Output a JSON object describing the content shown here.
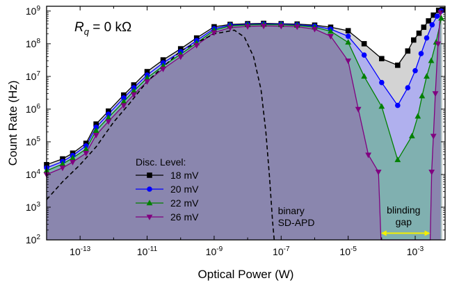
{
  "chart_data": {
    "type": "line",
    "annotation_title": {
      "symbol": "R",
      "subscript": "q",
      "rest": " = 0 kΩ"
    },
    "xlabel": "Optical Power (W)",
    "ylabel": "Count Rate (Hz)",
    "x_scale": "log",
    "y_scale": "log",
    "xlim": [
      1e-14,
      0.0078
    ],
    "ylim": [
      100,
      1400000000
    ],
    "x_ticks": [
      {
        "value": 1e-13,
        "base": "10",
        "exp": "-13"
      },
      {
        "value": 1e-11,
        "base": "10",
        "exp": "-11"
      },
      {
        "value": 1e-09,
        "base": "10",
        "exp": "-9"
      },
      {
        "value": 1e-07,
        "base": "10",
        "exp": "-7"
      },
      {
        "value": 1e-05,
        "base": "10",
        "exp": "-5"
      },
      {
        "value": 0.001,
        "base": "10",
        "exp": "-3"
      }
    ],
    "y_ticks": [
      {
        "value": 100,
        "base": "10",
        "exp": "2"
      },
      {
        "value": 1000,
        "base": "10",
        "exp": "3"
      },
      {
        "value": 10000,
        "base": "10",
        "exp": "4"
      },
      {
        "value": 100000,
        "base": "10",
        "exp": "5"
      },
      {
        "value": 1000000,
        "base": "10",
        "exp": "6"
      },
      {
        "value": 10000000,
        "base": "10",
        "exp": "7"
      },
      {
        "value": 100000000,
        "base": "10",
        "exp": "8"
      },
      {
        "value": 1000000000,
        "base": "10",
        "exp": "9"
      }
    ],
    "legend_title": "Disc. Level:",
    "legend_position": "lower-left",
    "series": [
      {
        "name": "18 mV",
        "color": "#000000",
        "marker": "square",
        "fill": "#d3d3d3",
        "points": [
          [
            1e-14,
            20000
          ],
          [
            3e-14,
            30000
          ],
          [
            6e-14,
            45000
          ],
          [
            1.5e-13,
            90000
          ],
          [
            3e-13,
            350000
          ],
          [
            7e-13,
            870000
          ],
          [
            2e-12,
            2700000
          ],
          [
            4e-12,
            5500000
          ],
          [
            1e-11,
            14000000
          ],
          [
            3e-11,
            32000000
          ],
          [
            1e-10,
            70000000
          ],
          [
            3e-10,
            150000000
          ],
          [
            1e-09,
            330000000
          ],
          [
            3e-09,
            390000000
          ],
          [
            1e-08,
            410000000
          ],
          [
            3e-08,
            420000000
          ],
          [
            1e-07,
            410000000
          ],
          [
            3e-07,
            400000000
          ],
          [
            1e-06,
            370000000
          ],
          [
            3e-06,
            320000000
          ],
          [
            1e-05,
            250000000
          ],
          [
            3e-05,
            100000000
          ],
          [
            0.0001,
            35000000
          ],
          [
            0.0003,
            22000000
          ],
          [
            0.0006,
            60000000
          ],
          [
            0.0009,
            130000000
          ],
          [
            0.0013,
            210000000
          ],
          [
            0.0018,
            320000000
          ],
          [
            0.0025,
            500000000
          ],
          [
            0.0035,
            750000000
          ],
          [
            0.005,
            1050000000
          ],
          [
            0.0065,
            1100000000
          ]
        ]
      },
      {
        "name": "20 mV",
        "color": "#0000ff",
        "marker": "circle",
        "fill": "#b0b0ee",
        "points": [
          [
            1e-14,
            16000
          ],
          [
            3e-14,
            25000
          ],
          [
            6e-14,
            38000
          ],
          [
            1.5e-13,
            75000
          ],
          [
            3e-13,
            280000
          ],
          [
            7e-13,
            700000
          ],
          [
            2e-12,
            2200000
          ],
          [
            4e-12,
            4500000
          ],
          [
            1e-11,
            11000000
          ],
          [
            3e-11,
            26000000
          ],
          [
            1e-10,
            57000000
          ],
          [
            3e-10,
            125000000
          ],
          [
            1e-09,
            290000000
          ],
          [
            3e-09,
            370000000
          ],
          [
            1e-08,
            390000000
          ],
          [
            3e-08,
            400000000
          ],
          [
            1e-07,
            395000000
          ],
          [
            3e-07,
            380000000
          ],
          [
            1e-06,
            345000000
          ],
          [
            3e-06,
            280000000
          ],
          [
            1e-05,
            170000000
          ],
          [
            3e-05,
            45000000
          ],
          [
            0.0001,
            6500000
          ],
          [
            0.0003,
            1300000
          ],
          [
            0.0006,
            4500000
          ],
          [
            0.001,
            15000000
          ],
          [
            0.0015,
            50000000
          ],
          [
            0.0022,
            150000000
          ],
          [
            0.0032,
            380000000
          ],
          [
            0.0045,
            700000000
          ],
          [
            0.006,
            1000000000
          ]
        ]
      },
      {
        "name": "22 mV",
        "color": "#008000",
        "marker": "triangle-up",
        "fill": "#80b0b0",
        "points": [
          [
            1e-14,
            13000
          ],
          [
            3e-14,
            21000
          ],
          [
            6e-14,
            32000
          ],
          [
            1.5e-13,
            60000
          ],
          [
            3e-13,
            220000
          ],
          [
            7e-13,
            550000
          ],
          [
            2e-12,
            1700000
          ],
          [
            4e-12,
            3600000
          ],
          [
            1e-11,
            9000000
          ],
          [
            3e-11,
            21000000
          ],
          [
            1e-10,
            48000000
          ],
          [
            3e-10,
            105000000
          ],
          [
            1e-09,
            260000000
          ],
          [
            3e-09,
            350000000
          ],
          [
            1e-08,
            375000000
          ],
          [
            3e-08,
            385000000
          ],
          [
            1e-07,
            380000000
          ],
          [
            3e-07,
            360000000
          ],
          [
            1e-06,
            320000000
          ],
          [
            3e-06,
            240000000
          ],
          [
            1e-05,
            110000000
          ],
          [
            3e-05,
            10000000
          ],
          [
            0.0001,
            1200000
          ],
          [
            0.0003,
            28000
          ],
          [
            0.0008,
            150000
          ],
          [
            0.0012,
            600000
          ],
          [
            0.0016,
            2500000
          ],
          [
            0.0022,
            10000000
          ],
          [
            0.003,
            30000000
          ],
          [
            0.0042,
            110000000
          ],
          [
            0.006,
            600000000
          ]
        ]
      },
      {
        "name": "26 mV",
        "color": "#800080",
        "marker": "triangle-down",
        "fill": "#8a86ae",
        "points": [
          [
            1e-14,
            10000
          ],
          [
            3e-14,
            16000
          ],
          [
            6e-14,
            24000
          ],
          [
            1.5e-13,
            45000
          ],
          [
            3e-13,
            160000
          ],
          [
            7e-13,
            420000
          ],
          [
            2e-12,
            1300000
          ],
          [
            4e-12,
            2800000
          ],
          [
            1e-11,
            7000000
          ],
          [
            3e-11,
            17000000
          ],
          [
            1e-10,
            40000000
          ],
          [
            3e-10,
            90000000
          ],
          [
            1e-09,
            220000000
          ],
          [
            3e-09,
            310000000
          ],
          [
            1e-08,
            340000000
          ],
          [
            3e-08,
            350000000
          ],
          [
            1e-07,
            345000000
          ],
          [
            3e-07,
            330000000
          ],
          [
            1e-06,
            280000000
          ],
          [
            3e-06,
            170000000
          ],
          [
            1e-05,
            30000000
          ],
          [
            2e-05,
            1000000
          ],
          [
            4e-05,
            40000
          ],
          [
            8e-05,
            12000
          ],
          [
            9.5e-05,
            100
          ],
          [
            0.0028,
            100
          ],
          [
            0.0031,
            12000
          ],
          [
            0.0035,
            150000
          ],
          [
            0.004,
            3000000
          ],
          [
            0.0048,
            100000000
          ],
          [
            0.0057,
            900000000
          ]
        ]
      }
    ],
    "reference_curve": {
      "name": "binary SD-APD",
      "style": "dashed",
      "color": "#000000",
      "points": [
        [
          1e-14,
          1700
        ],
        [
          3e-14,
          6000
        ],
        [
          1e-13,
          20000
        ],
        [
          3e-13,
          70000
        ],
        [
          1e-12,
          400000
        ],
        [
          3e-12,
          1500000
        ],
        [
          1e-11,
          7000000
        ],
        [
          1e-10,
          60000000
        ],
        [
          1e-09,
          200000000
        ],
        [
          4e-09,
          260000000
        ],
        [
          8e-09,
          160000000
        ],
        [
          1.5e-08,
          40000000
        ],
        [
          2.5e-08,
          4000000
        ],
        [
          3.5e-08,
          200000
        ],
        [
          4.5e-08,
          8000
        ],
        [
          5.5e-08,
          400
        ],
        [
          6.2e-08,
          100
        ]
      ]
    },
    "annotations": [
      {
        "lines": [
          "binary",
          "SD-APD"
        ],
        "x": 6e-08,
        "y": 500
      },
      {
        "lines": [
          "blinding",
          "gap"
        ],
        "x": 0.00045,
        "y": 700
      }
    ],
    "blinding_gap": {
      "from": 9.5e-05,
      "to": 0.0028,
      "y": 160,
      "arrow_color": "#f5ef00"
    }
  }
}
